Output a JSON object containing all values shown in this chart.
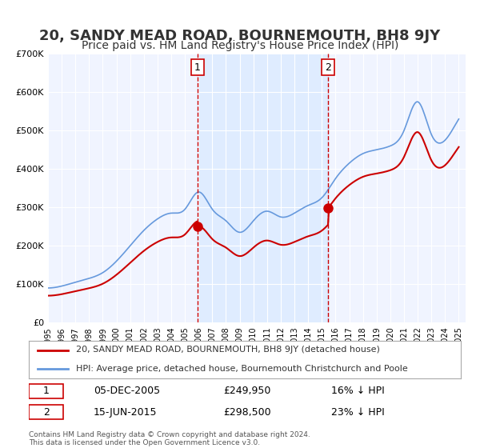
{
  "title": "20, SANDY MEAD ROAD, BOURNEMOUTH, BH8 9JY",
  "subtitle": "Price paid vs. HM Land Registry's House Price Index (HPI)",
  "title_fontsize": 13,
  "subtitle_fontsize": 10,
  "background_color": "#ffffff",
  "plot_background_color": "#f0f4ff",
  "grid_color": "#ffffff",
  "hpi_color": "#6699dd",
  "price_color": "#cc0000",
  "ylim": [
    0,
    700000
  ],
  "yticks": [
    0,
    100000,
    200000,
    300000,
    400000,
    500000,
    600000,
    700000
  ],
  "ytick_labels": [
    "£0",
    "£100K",
    "£200K",
    "£300K",
    "£400K",
    "£500K",
    "£600K",
    "£700K"
  ],
  "sale1_date": 2005.92,
  "sale1_price": 249950,
  "sale1_label": "1",
  "sale1_date_str": "05-DEC-2005",
  "sale1_price_str": "£249,950",
  "sale1_pct": "16% ↓ HPI",
  "sale2_date": 2015.46,
  "sale2_price": 298500,
  "sale2_label": "2",
  "sale2_date_str": "15-JUN-2015",
  "sale2_price_str": "£298,500",
  "sale2_pct": "23% ↓ HPI",
  "legend_line1": "20, SANDY MEAD ROAD, BOURNEMOUTH, BH8 9JY (detached house)",
  "legend_line2": "HPI: Average price, detached house, Bournemouth Christchurch and Poole",
  "footer": "Contains HM Land Registry data © Crown copyright and database right 2024.\nThis data is licensed under the Open Government Licence v3.0."
}
